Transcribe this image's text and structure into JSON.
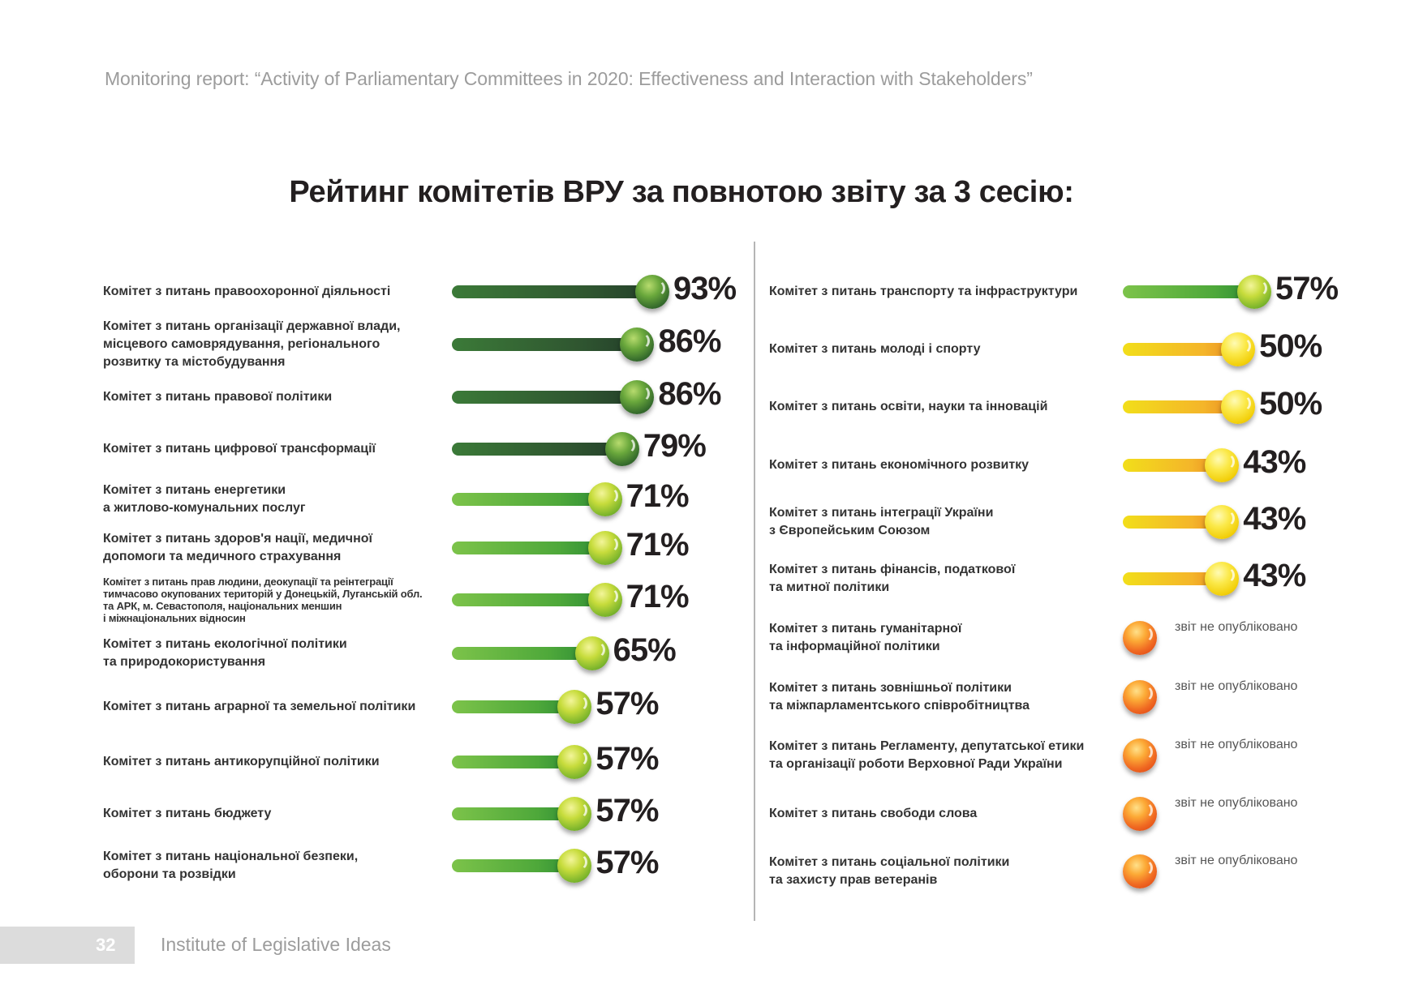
{
  "header": {
    "running_head": "Monitoring report: “Activity of Parliamentary Committees in 2020: Effectiveness and Interaction with Stakeholders”"
  },
  "page_title": "Рейтинг комітетів ВРУ за повнотою звіту за 3 сесію:",
  "colors": {
    "dark_green": "#2f5530",
    "light_green": "#4ea83a",
    "yellow": "#f2cf0a",
    "red_orange": "#f06a22"
  },
  "left_column": [
    {
      "label": "Комітет з питань правоохоронної діяльності",
      "value_pct": 93,
      "pct_text": "93%",
      "tier": "dark"
    },
    {
      "label": "Комітет з питань організації державної влади,\nмісцевого самоврядування, регіонального\nрозвитку та містобудування",
      "value_pct": 86,
      "pct_text": "86%",
      "tier": "dark"
    },
    {
      "label": "Комітет з питань правової політики",
      "value_pct": 86,
      "pct_text": "86%",
      "tier": "dark"
    },
    {
      "label": "Комітет з питань цифрової трансформації",
      "value_pct": 79,
      "pct_text": "79%",
      "tier": "dark"
    },
    {
      "label": "Комітет з питань енергетики\nа житлово-комунальних послуг",
      "value_pct": 71,
      "pct_text": "71%",
      "tier": "light"
    },
    {
      "label": "Комітет з питань здоров'я нації, медичної\nдопомоги та медичного страхування",
      "value_pct": 71,
      "pct_text": "71%",
      "tier": "light"
    },
    {
      "label": "Комітет з питань прав людини, деокупації та реінтеграції\nтимчасово окупованих територій у Донецькій, Луганській обл.\nта АРК, м. Севастополя, національних меншин\nі міжнаціональних відносин",
      "value_pct": 71,
      "pct_text": "71%",
      "tier": "light"
    },
    {
      "label": "Комітет з питань екологічної політики\nта природокористування",
      "value_pct": 65,
      "pct_text": "65%",
      "tier": "light"
    },
    {
      "label": "Комітет з питань аграрної та земельної політики",
      "value_pct": 57,
      "pct_text": "57%",
      "tier": "light"
    },
    {
      "label": "Комітет з питань антикорупційної політики",
      "value_pct": 57,
      "pct_text": "57%",
      "tier": "light"
    },
    {
      "label": "Комітет з питань бюджету",
      "value_pct": 57,
      "pct_text": "57%",
      "tier": "light"
    },
    {
      "label": "Комітет з питань національної безпеки,\nоборони та розвідки",
      "value_pct": 57,
      "pct_text": "57%",
      "tier": "light"
    }
  ],
  "right_column": [
    {
      "label": "Комітет з питань транспорту та інфраструктури",
      "value_pct": 57,
      "pct_text": "57%",
      "tier": "light"
    },
    {
      "label": "Комітет з питань молоді і спорту",
      "value_pct": 50,
      "pct_text": "50%",
      "tier": "yellow"
    },
    {
      "label": "Комітет з питань освіти, науки та інновацій",
      "value_pct": 50,
      "pct_text": "50%",
      "tier": "yellow"
    },
    {
      "label": "Комітет з питань економічного розвитку",
      "value_pct": 43,
      "pct_text": "43%",
      "tier": "yellow"
    },
    {
      "label": "Комітет з питань інтеграції України\nз Європейським Союзом",
      "value_pct": 43,
      "pct_text": "43%",
      "tier": "yellow"
    },
    {
      "label": "Комітет з питань фінансів, податкової\nта митної політики",
      "value_pct": 43,
      "pct_text": "43%",
      "tier": "yellow"
    },
    {
      "label": "Комітет з питань гуманітарної\nта інформаційної політики",
      "value_pct": null,
      "status_text": "звіт не опубліковано",
      "tier": "red"
    },
    {
      "label": "Комітет з питань зовнішньої політики\nта міжпарламентського співробітництва",
      "value_pct": null,
      "status_text": "звіт не опубліковано",
      "tier": "red"
    },
    {
      "label": "Комітет з питань Регламенту, депутатської етики\nта організації роботи Верховної Ради України",
      "value_pct": null,
      "status_text": "звіт не опубліковано",
      "tier": "red"
    },
    {
      "label": "Комітет з питань свободи слова",
      "value_pct": null,
      "status_text": "звіт не опубліковано",
      "tier": "red"
    },
    {
      "label": "Комітет з питань соціальної політики\nта захисту прав ветеранів",
      "value_pct": null,
      "status_text": "звіт не опубліковано",
      "tier": "red"
    }
  ],
  "footer": {
    "page_number": "32",
    "publisher": "Institute of Legislative Ideas"
  }
}
